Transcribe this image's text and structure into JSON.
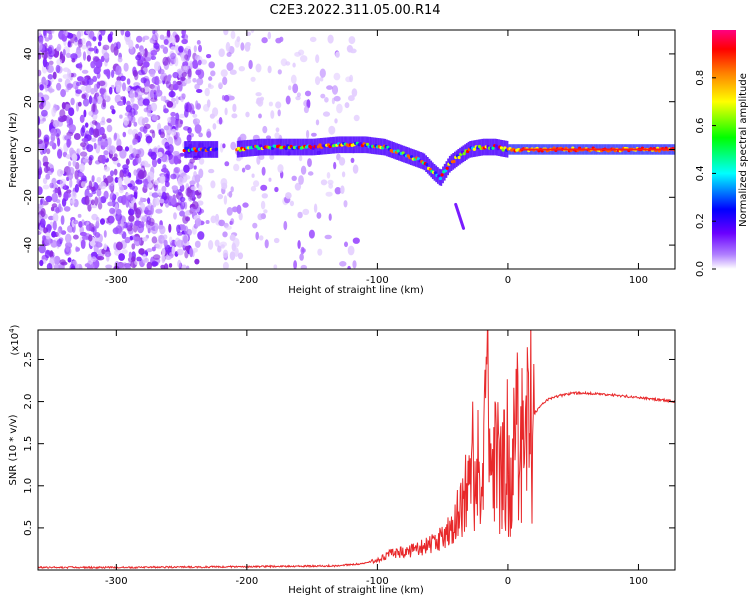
{
  "title": "C2E3.2022.311.05.00.R14",
  "chart_data": [
    {
      "type": "heatmap",
      "xlabel": "Height of straight line (km)",
      "ylabel": "Frequency (Hz)",
      "xlim": [
        -360,
        128
      ],
      "ylim": [
        -50,
        50
      ],
      "xticks": [
        -300,
        -200,
        -100,
        0,
        100
      ],
      "xtick_labels": [
        "-300",
        "-200",
        "-100",
        "0",
        "100"
      ],
      "yticks": [
        -40,
        -20,
        0,
        20,
        40
      ],
      "ytick_labels": [
        "-40",
        "-20",
        "0",
        "20",
        "40"
      ],
      "colorbar": {
        "label": "Normalized spectral amplitude",
        "range": [
          0.0,
          1.0
        ],
        "ticks": [
          0.0,
          0.2,
          0.4,
          0.6,
          0.8
        ],
        "tick_labels": [
          "0.0",
          "0.2",
          "0.4",
          "0.6",
          "0.8"
        ],
        "colors": [
          "#ffffff",
          "#7b00ff",
          "#0000ff",
          "#00ffff",
          "#00ff00",
          "#ffff00",
          "#ff8000",
          "#ff0000",
          "#ff0080"
        ]
      },
      "ridge": {
        "x": [
          -248,
          -230,
          -210,
          -190,
          -170,
          -150,
          -130,
          -110,
          -95,
          -85,
          -75,
          -65,
          -58,
          -52,
          -45,
          -38,
          -30,
          -20,
          -10,
          0,
          20,
          50,
          80,
          100,
          128
        ],
        "y": [
          0,
          0,
          0,
          1,
          1,
          1,
          2,
          2,
          1,
          -1,
          -3,
          -5,
          -9,
          -12,
          -6,
          -3,
          0,
          1,
          1,
          0,
          0,
          0,
          0,
          0,
          0
        ]
      },
      "secondary_trace": {
        "x": [
          -40,
          -34
        ],
        "y": [
          -23,
          -33
        ]
      },
      "noise_region_xmax": -130
    },
    {
      "type": "line",
      "xlabel": "Height of straight line (km)",
      "ylabel": "SNR (10 * v/v)",
      "y_multiplier_label": "(x10",
      "y_multiplier_exp": "4",
      "y_multiplier_close": ")",
      "xlim": [
        -360,
        128
      ],
      "ylim": [
        0,
        2.85
      ],
      "xticks": [
        -300,
        -200,
        -100,
        0,
        100
      ],
      "xtick_labels": [
        "-300",
        "-200",
        "-100",
        "0",
        "100"
      ],
      "yticks": [
        0.5,
        1.0,
        1.5,
        2.0,
        2.5
      ],
      "ytick_labels": [
        "0.5",
        "1.0",
        "1.5",
        "2.0",
        "2.5"
      ],
      "color": "#e8282a",
      "series": [
        {
          "x": [
            -360,
            -300,
            -200,
            -130,
            -110,
            -100,
            -90,
            -80,
            -70,
            -60,
            -50,
            -45,
            -40,
            -35,
            -30,
            -25,
            -20,
            -17,
            -15,
            -12,
            -8,
            -5,
            0,
            5,
            10,
            15,
            20,
            25,
            30,
            40,
            50,
            60,
            80,
            100,
            128
          ],
          "y": [
            0.03,
            0.03,
            0.04,
            0.05,
            0.08,
            0.12,
            0.2,
            0.22,
            0.25,
            0.3,
            0.38,
            0.5,
            0.65,
            0.85,
            1.0,
            1.15,
            1.25,
            2.0,
            1.3,
            1.35,
            1.4,
            1.45,
            1.5,
            1.58,
            1.66,
            1.75,
            1.85,
            1.95,
            2.02,
            2.07,
            2.1,
            2.1,
            2.08,
            2.05,
            2.0
          ]
        }
      ],
      "spikes": [
        {
          "x": -15.5,
          "y": 2.85
        },
        {
          "x": -18,
          "y": 2.1
        },
        {
          "x": -27,
          "y": 2.0
        },
        {
          "x": -23,
          "y": 1.9
        },
        {
          "x": -10,
          "y": 2.0
        },
        {
          "x": -3,
          "y": 1.9
        },
        {
          "x": 5,
          "y": 1.85
        }
      ]
    }
  ]
}
